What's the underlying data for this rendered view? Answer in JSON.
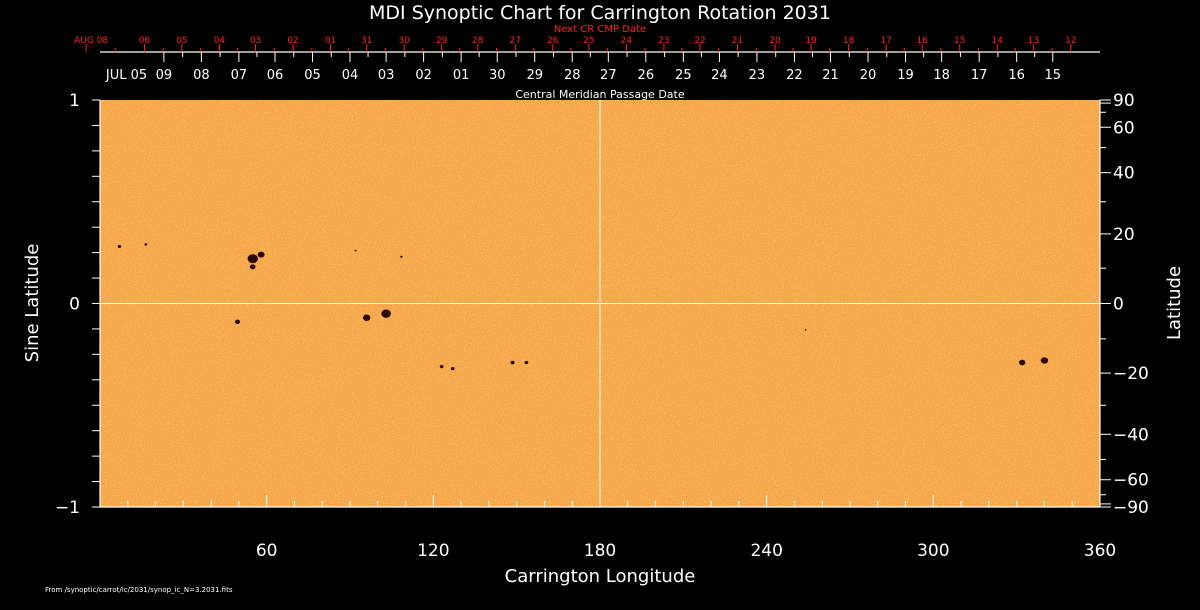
{
  "chart_data": {
    "type": "heatmap",
    "title": "MDI Synoptic Chart for Carrington Rotation 2031",
    "xlabel": "Carrington Longitude",
    "ylabel_left": "Sine Latitude",
    "ylabel_right": "Latitude",
    "top_axis_label": "Central Meridian Passage Date",
    "next_cr_label": "Next CR CMP Date",
    "footer": "From /synoptic/carrot/ic/2031/synop_ic_N=3.2031.fits",
    "xlim": [
      0,
      360
    ],
    "ylim": [
      -1,
      1
    ],
    "x_tick_labels": [
      "60",
      "120",
      "180",
      "240",
      "300",
      "360"
    ],
    "x_tick_values": [
      60,
      120,
      180,
      240,
      300,
      360
    ],
    "y_left_ticks": [
      {
        "value": 1,
        "label": "1"
      },
      {
        "value": 0,
        "label": "0"
      },
      {
        "value": -1,
        "label": "−1"
      }
    ],
    "y_right_ticks": [
      {
        "lat": 90,
        "label": "90"
      },
      {
        "lat": 60,
        "label": "60"
      },
      {
        "lat": 40,
        "label": "40"
      },
      {
        "lat": 20,
        "label": "20"
      },
      {
        "lat": 0,
        "label": "0"
      },
      {
        "lat": -20,
        "label": "−20"
      },
      {
        "lat": -40,
        "label": "−40"
      },
      {
        "lat": -60,
        "label": "−60"
      },
      {
        "lat": -90,
        "label": "−90"
      }
    ],
    "cmp_dates_white": [
      {
        "lon": 5,
        "label": "JUL 05"
      },
      {
        "lon": 23,
        "label": "09"
      },
      {
        "lon": 36.5,
        "label": "08"
      },
      {
        "lon": 50,
        "label": "07"
      },
      {
        "lon": 63,
        "label": "06"
      },
      {
        "lon": 76.5,
        "label": "05"
      },
      {
        "lon": 90,
        "label": "04"
      },
      {
        "lon": 103,
        "label": "03"
      },
      {
        "lon": 116.5,
        "label": "02"
      },
      {
        "lon": 130,
        "label": "01"
      },
      {
        "lon": 143,
        "label": "30"
      },
      {
        "lon": 156.5,
        "label": "29"
      },
      {
        "lon": 170,
        "label": "28"
      },
      {
        "lon": 183,
        "label": "27"
      },
      {
        "lon": 196.5,
        "label": "26"
      },
      {
        "lon": 210,
        "label": "25"
      },
      {
        "lon": 223,
        "label": "24"
      },
      {
        "lon": 236.5,
        "label": "23"
      },
      {
        "lon": 250,
        "label": "22"
      },
      {
        "lon": 263,
        "label": "21"
      },
      {
        "lon": 276.5,
        "label": "20"
      },
      {
        "lon": 290,
        "label": "19"
      },
      {
        "lon": 303,
        "label": "18"
      },
      {
        "lon": 316.5,
        "label": "17"
      },
      {
        "lon": 330,
        "label": "16"
      },
      {
        "lon": 343,
        "label": "15"
      }
    ],
    "cmp_dates_red": [
      {
        "lon": -5,
        "label": "AUG 08"
      },
      {
        "lon": 16,
        "label": "06"
      },
      {
        "lon": 29.5,
        "label": "05"
      },
      {
        "lon": 43,
        "label": "04"
      },
      {
        "lon": 56,
        "label": "03"
      },
      {
        "lon": 69.5,
        "label": "02"
      },
      {
        "lon": 83,
        "label": "01"
      },
      {
        "lon": 96,
        "label": "31"
      },
      {
        "lon": 109.5,
        "label": "30"
      },
      {
        "lon": 123,
        "label": "29"
      },
      {
        "lon": 136,
        "label": "28"
      },
      {
        "lon": 149.5,
        "label": "27"
      },
      {
        "lon": 163,
        "label": "26"
      },
      {
        "lon": 176,
        "label": "25"
      },
      {
        "lon": 189.5,
        "label": "24"
      },
      {
        "lon": 203,
        "label": "23"
      },
      {
        "lon": 216,
        "label": "22"
      },
      {
        "lon": 229.5,
        "label": "21"
      },
      {
        "lon": 243,
        "label": "20"
      },
      {
        "lon": 256,
        "label": "19"
      },
      {
        "lon": 269.5,
        "label": "18"
      },
      {
        "lon": 283,
        "label": "17"
      },
      {
        "lon": 296,
        "label": "16"
      },
      {
        "lon": 309.5,
        "label": "15"
      },
      {
        "lon": 323,
        "label": "14"
      },
      {
        "lon": 336,
        "label": "13"
      },
      {
        "lon": 349.5,
        "label": "12"
      }
    ],
    "sunspots": [
      {
        "lon": 7,
        "sinlat": 0.28,
        "size": 1.5
      },
      {
        "lon": 16.5,
        "sinlat": 0.29,
        "size": 1.2
      },
      {
        "lon": 55,
        "sinlat": 0.22,
        "size": 4.5
      },
      {
        "lon": 58,
        "sinlat": 0.24,
        "size": 3.0
      },
      {
        "lon": 55,
        "sinlat": 0.18,
        "size": 2.5
      },
      {
        "lon": 92,
        "sinlat": 0.26,
        "size": 0.8
      },
      {
        "lon": 108.5,
        "sinlat": 0.23,
        "size": 1.0
      },
      {
        "lon": 49.5,
        "sinlat": -0.09,
        "size": 2.2
      },
      {
        "lon": 96,
        "sinlat": -0.07,
        "size": 3.2
      },
      {
        "lon": 103,
        "sinlat": -0.05,
        "size": 4.2
      },
      {
        "lon": 123,
        "sinlat": -0.31,
        "size": 1.6
      },
      {
        "lon": 127,
        "sinlat": -0.32,
        "size": 1.6
      },
      {
        "lon": 148.5,
        "sinlat": -0.29,
        "size": 1.8
      },
      {
        "lon": 153.5,
        "sinlat": -0.29,
        "size": 1.6
      },
      {
        "lon": 254,
        "sinlat": -0.13,
        "size": 0.7
      },
      {
        "lon": 332,
        "sinlat": -0.29,
        "size": 2.8
      },
      {
        "lon": 340,
        "sinlat": -0.28,
        "size": 3.2
      }
    ],
    "colors": {
      "background": "#000000",
      "map_base": "#f5a343",
      "map_light": "#fdc068",
      "map_dark": "#e88a2a",
      "sunspot": "#2a0800",
      "grid": "#ffffff",
      "next_cr": "#ff2020"
    }
  }
}
